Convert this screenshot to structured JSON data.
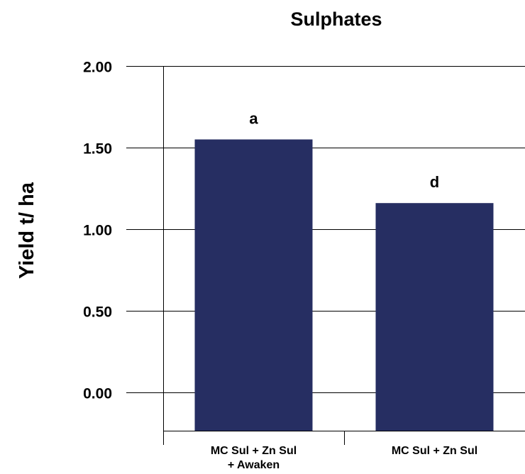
{
  "chart_data": {
    "type": "bar",
    "title": "Sulphates",
    "ylabel": "Yield t/ ha",
    "xlabel": "",
    "ylim": [
      -0.2,
      2.0
    ],
    "yticks": [
      "2.00",
      "1.50",
      "1.00",
      "0.50",
      "0.00"
    ],
    "ytick_values": [
      2.0,
      1.5,
      1.0,
      0.5,
      0.0
    ],
    "categories": [
      [
        "MC Sul + Zn Sul",
        "+ Awaken"
      ],
      [
        "MC Sul + Zn Sul"
      ]
    ],
    "values": [
      1.55,
      1.16
    ],
    "bar_labels": [
      "a",
      "d"
    ],
    "bar_color": "#262e62",
    "grid": true,
    "legend": "none"
  }
}
